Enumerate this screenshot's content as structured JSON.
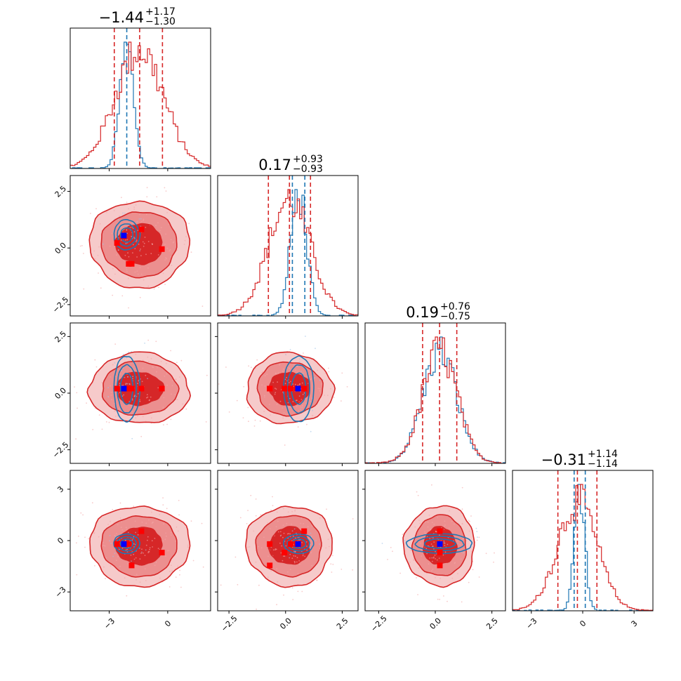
{
  "chart_data": {
    "type": "corner",
    "parameters": 4,
    "colors": {
      "sample_a": "#d62728",
      "sample_b": "#1f77b4",
      "truth_marker": "#ff0000",
      "reference_marker": "#0000ff"
    },
    "titles": [
      {
        "value": "−1.44",
        "plus": "+1.17",
        "minus": "−1.30"
      },
      {
        "value": "0.17",
        "plus": "+0.93",
        "minus": "−0.93"
      },
      {
        "value": "0.19",
        "plus": "+0.76",
        "minus": "−0.75"
      },
      {
        "value": "−0.31",
        "plus": "+1.14",
        "minus": "−1.14"
      }
    ],
    "axis_ranges": [
      [
        -5.0,
        2.2
      ],
      [
        -3.0,
        3.2
      ],
      [
        -3.1,
        3.1
      ],
      [
        -4.1,
        4.1
      ]
    ],
    "tick_values": [
      [
        -3,
        0
      ],
      [
        -2.5,
        0,
        2.5
      ],
      [
        -2.5,
        0,
        2.5
      ],
      [
        -3,
        0,
        3
      ]
    ],
    "tick_labels": [
      [
        "−3",
        "0"
      ],
      [
        "−2.5",
        "0.0",
        "2.5"
      ],
      [
        "−2.5",
        "0.0",
        "2.5"
      ],
      [
        "−3",
        "0",
        "3"
      ]
    ],
    "quantile_lines": {
      "sample_a": [
        [
          -2.74,
          -1.44,
          -0.27
        ],
        [
          -0.76,
          0.17,
          1.1
        ],
        [
          -0.56,
          0.19,
          0.95
        ],
        [
          -1.45,
          -0.31,
          0.83
        ]
      ],
      "sample_b": [
        [
          -2.1
        ],
        [
          0.3,
          0.85
        ],
        [],
        [
          -0.5,
          0.15
        ]
      ]
    },
    "marginal_sample_a": {
      "p0": {
        "center": -1.45,
        "sigma": 1.25
      },
      "p1": {
        "center": 0.17,
        "sigma": 0.93
      },
      "p2": {
        "center": 0.2,
        "sigma": 0.76
      },
      "p3": {
        "center": -0.31,
        "sigma": 1.14
      }
    },
    "marginal_sample_b": {
      "p0": {
        "center": -2.1,
        "sigma": 0.35
      },
      "p1": {
        "center": 0.58,
        "sigma": 0.35
      },
      "p2": {
        "center": 0.2,
        "sigma": 0.76
      },
      "p3": {
        "center": -0.18,
        "sigma": 0.3
      }
    },
    "truth_points": [
      {
        "p0": -2.25,
        "p1": 0.5,
        "p2": 0.2,
        "p3": -0.2
      },
      {
        "p0": -2.6,
        "p1": 0.22,
        "p2": 0.2,
        "p3": -0.2
      },
      {
        "p0": -1.35,
        "p1": 0.82,
        "p2": 0.2,
        "p3": 0.55
      },
      {
        "p0": -0.3,
        "p1": -0.05,
        "p2": 0.2,
        "p3": -0.7
      },
      {
        "p0": -1.85,
        "p1": -0.7,
        "p2": 0.2,
        "p3": -1.45
      },
      {
        "p0": -2.0,
        "p1": -0.7,
        "p2": 0.2,
        "p3": -0.2
      }
    ],
    "reference_point": {
      "p0": -2.25,
      "p1": 0.55,
      "p2": 0.2,
      "p3": -0.2
    },
    "contour_levels": 3,
    "grid": false
  }
}
